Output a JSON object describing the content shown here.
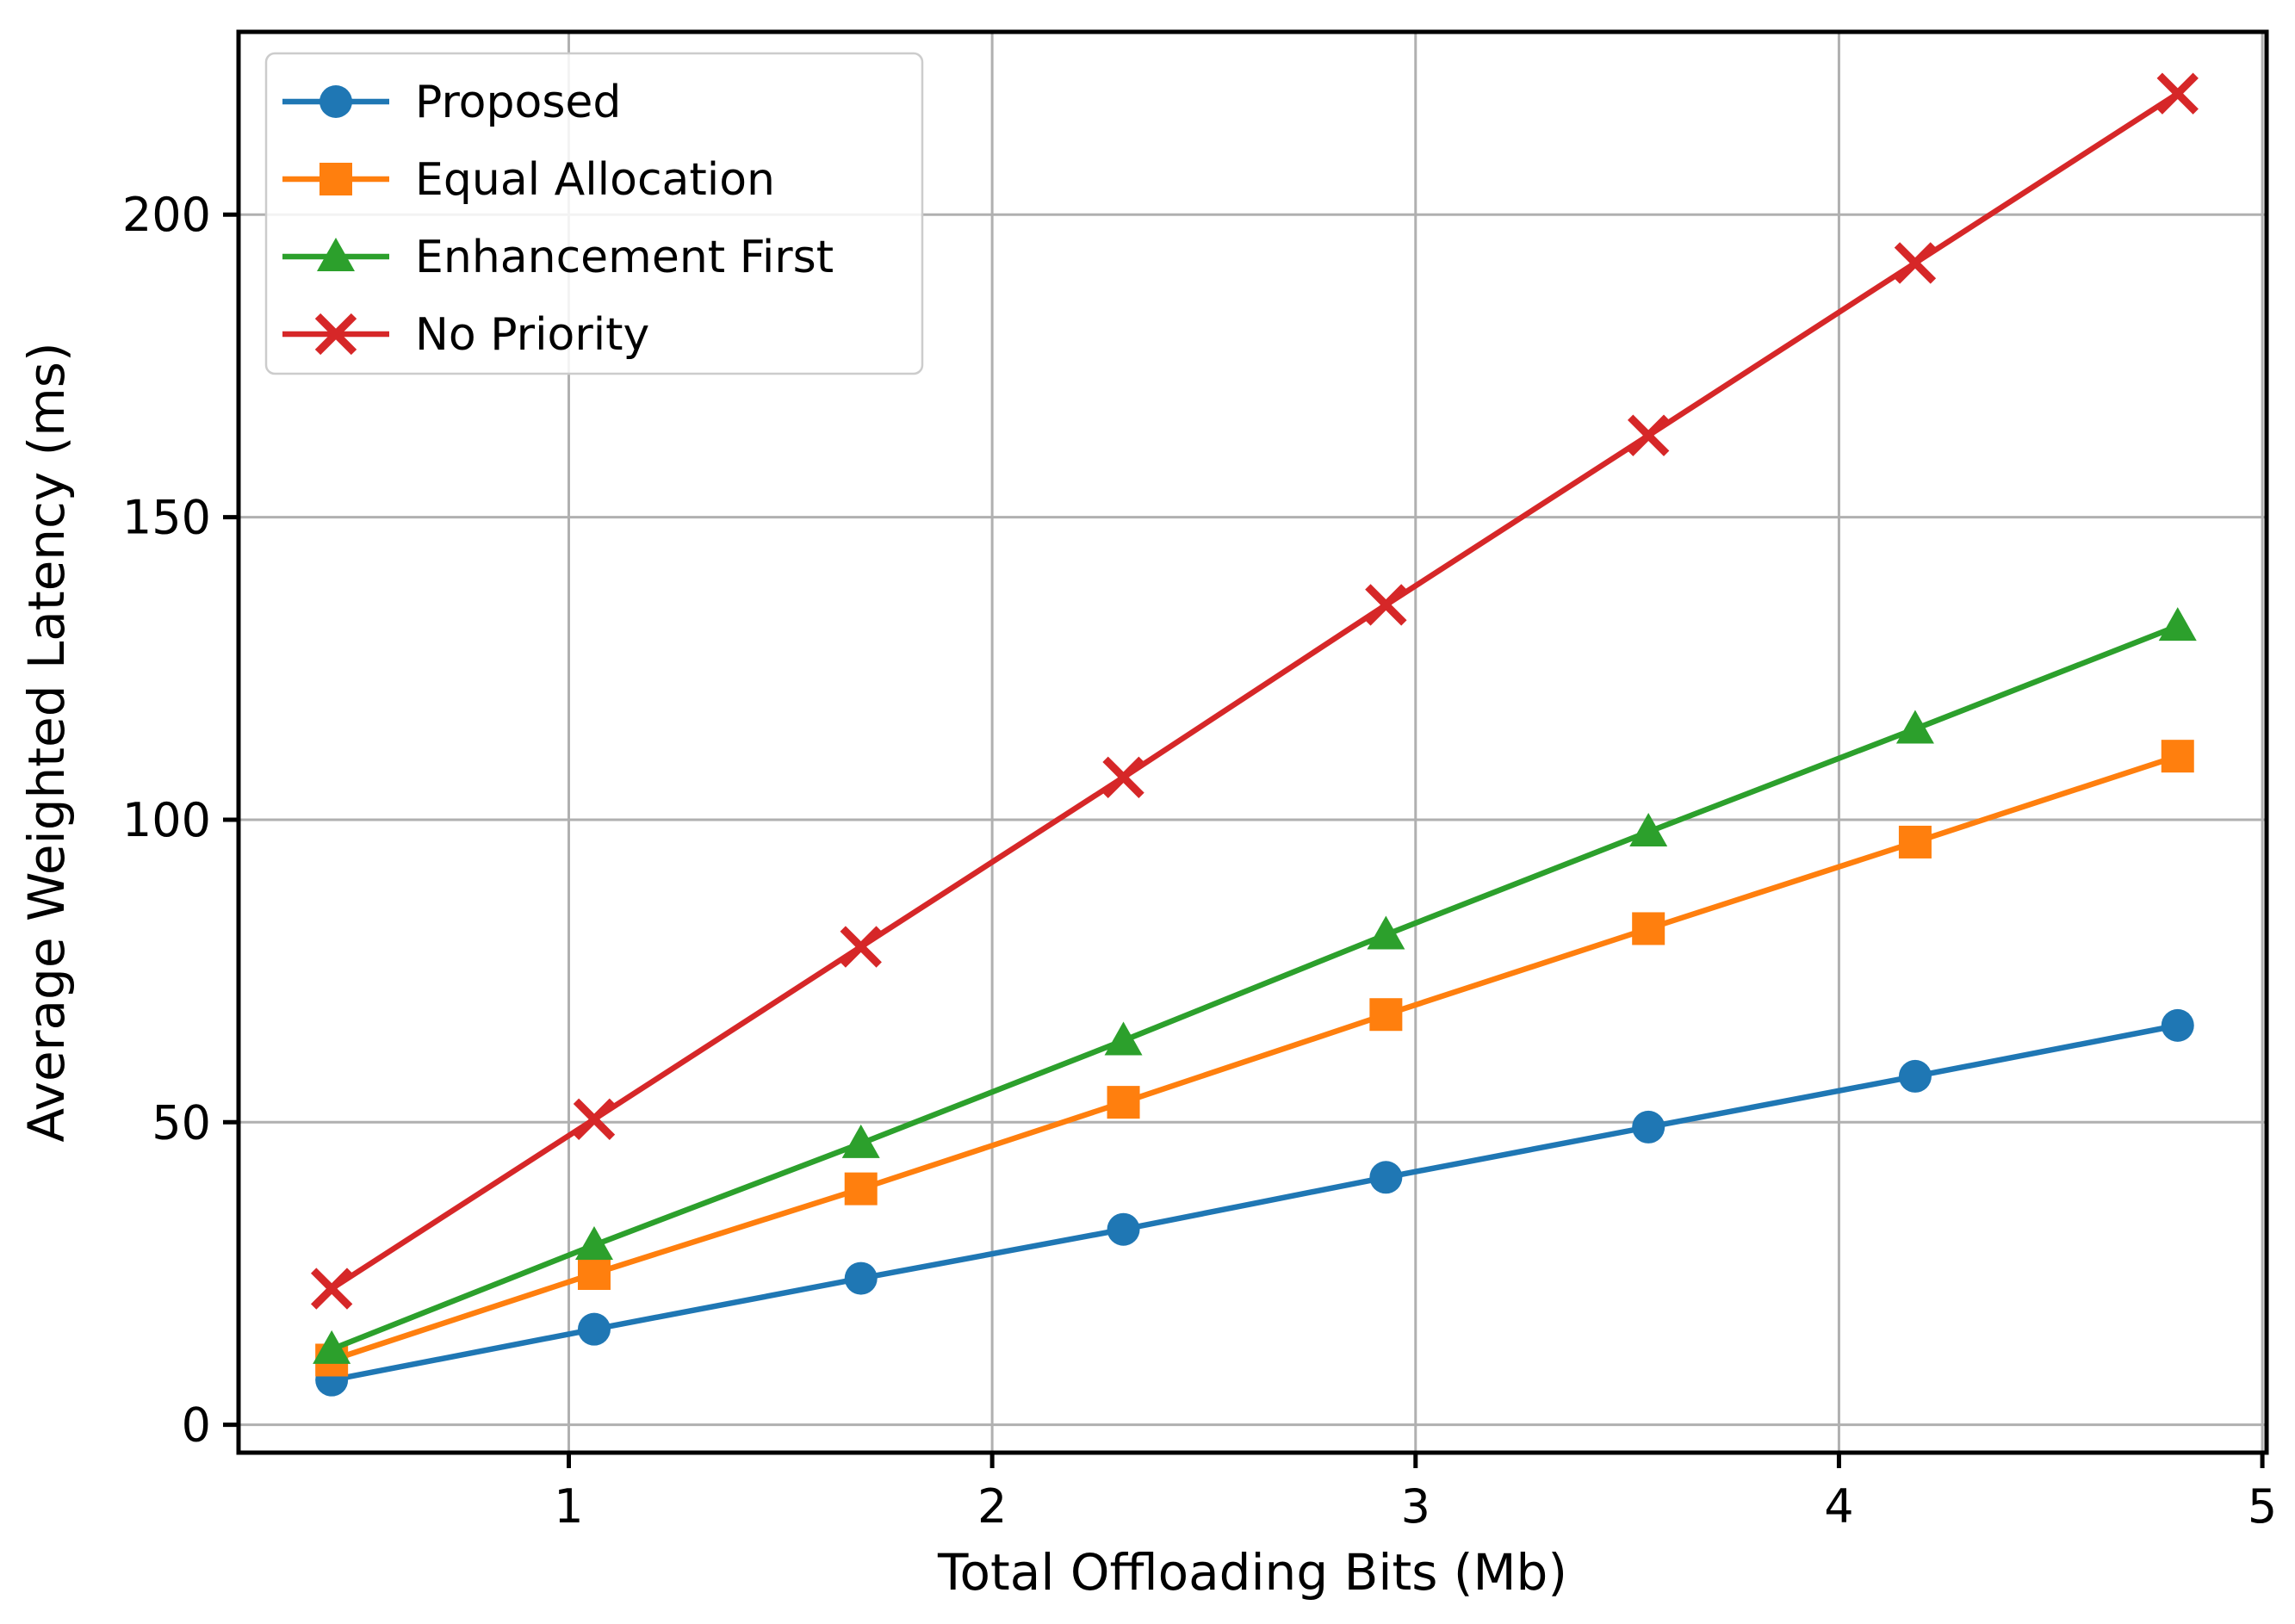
{
  "figure": {
    "kind": "line-chart-figure",
    "background": "#ffffff"
  },
  "chart_data": {
    "type": "line",
    "title": "",
    "xlabel": "Total Offloading Bits (Mb)",
    "ylabel": "Average Weighted Latency (ms)",
    "x": [
      0.44,
      1.06,
      1.69,
      2.31,
      2.93,
      3.55,
      4.18,
      4.8
    ],
    "series": [
      {
        "name": "Proposed",
        "color": "#1f77b4",
        "marker": "circle",
        "values": [
          7.4,
          15.8,
          24.2,
          32.3,
          40.9,
          49.2,
          57.6,
          66.0
        ]
      },
      {
        "name": "Equal Allocation",
        "color": "#ff7f0e",
        "marker": "square",
        "values": [
          10.7,
          25.0,
          39.0,
          53.3,
          67.8,
          82.0,
          96.3,
          110.5
        ]
      },
      {
        "name": "Enhancement First",
        "color": "#2ca02c",
        "marker": "triangle",
        "values": [
          12.5,
          29.7,
          46.5,
          63.5,
          81.0,
          98.0,
          115.0,
          132.0
        ]
      },
      {
        "name": "No Priority",
        "color": "#d62728",
        "marker": "x",
        "values": [
          22.5,
          50.5,
          79.0,
          107.0,
          135.5,
          163.5,
          192.0,
          220.0
        ]
      }
    ],
    "x_ticks": [
      "1",
      "2",
      "3",
      "4",
      "5"
    ],
    "x_tick_values": [
      1,
      2,
      3,
      4,
      5
    ],
    "y_ticks": [
      "0",
      "50",
      "100",
      "150",
      "200"
    ],
    "y_tick_values": [
      0,
      50,
      100,
      150,
      200
    ],
    "xlim": [
      0.22,
      5.01
    ],
    "ylim": [
      -4.6,
      230.2
    ],
    "grid": true,
    "grid_color": "#b0b0b0",
    "axis_color": "#000000",
    "legend_position": "upper-left",
    "legend_border_color": "#cccccc"
  }
}
